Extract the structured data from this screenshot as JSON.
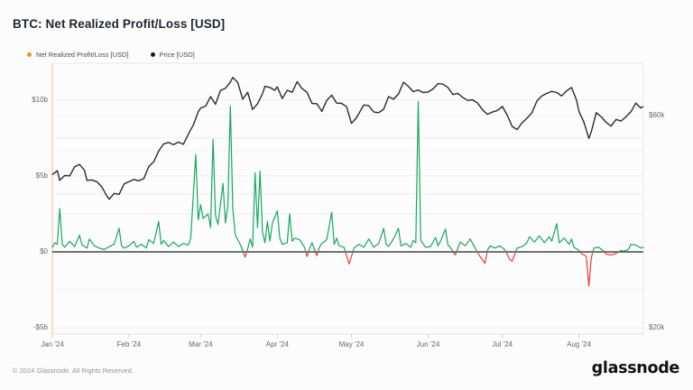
{
  "header": {
    "title": "BTC: Net Realized Profit/Loss [USD]"
  },
  "legend": [
    {
      "label": "Net Realized Profit/Loss [USD]",
      "color": "#f7931a"
    },
    {
      "label": "Price [USD]",
      "color": "#17191d"
    }
  ],
  "footer": {
    "copyright": "© 2024 Glassnode. All Rights Reserved.",
    "logo_text": "glassnode"
  },
  "chart_data": {
    "type": "line",
    "title": "BTC: Net Realized Profit/Loss [USD]",
    "grid": "on",
    "legend_position": "top-left",
    "x_axis": {
      "unit": "date (2024)",
      "domain_days": [
        0,
        239
      ],
      "ticks": [
        {
          "label": "Jan '24",
          "day": 0
        },
        {
          "label": "Feb '24",
          "day": 31
        },
        {
          "label": "Mar '24",
          "day": 60
        },
        {
          "label": "Apr '24",
          "day": 91
        },
        {
          "label": "May '24",
          "day": 121
        },
        {
          "label": "Jun '24",
          "day": 152
        },
        {
          "label": "Jul '24",
          "day": 182
        },
        {
          "label": "Aug '24",
          "day": 213
        }
      ]
    },
    "y_left": {
      "name": "Net Realized Profit/Loss",
      "unit": "USD billions",
      "scale": "linear",
      "ticks": [
        {
          "label": "$10b",
          "value": 10
        },
        {
          "label": "$5b",
          "value": 5
        },
        {
          "label": "$0",
          "value": 0
        },
        {
          "label": "-$5b",
          "value": -5
        }
      ],
      "minor_gridlines": [
        7.5,
        2.5,
        -2.5
      ]
    },
    "y_right": {
      "name": "Price",
      "unit": "USD thousands",
      "scale": "log",
      "ticks": [
        {
          "label": "$60k",
          "value": 60
        },
        {
          "label": "$20k",
          "value": 20
        }
      ],
      "minor_gridlines": [
        50,
        40
      ]
    },
    "series": [
      {
        "name": "Net Realized Profit/Loss [USD]",
        "axis": "left",
        "pos_color": "#16a863",
        "neg_color": "#ef3b31",
        "points": [
          [
            0,
            0.3
          ],
          [
            1,
            0.6
          ],
          [
            2,
            0.5
          ],
          [
            3,
            2.85
          ],
          [
            4,
            0.5
          ],
          [
            5,
            0.3
          ],
          [
            7,
            0.7
          ],
          [
            9,
            0.35
          ],
          [
            11,
            1.1
          ],
          [
            12,
            0.45
          ],
          [
            14,
            0.25
          ],
          [
            15,
            0.85
          ],
          [
            17,
            0.4
          ],
          [
            19,
            0.25
          ],
          [
            21,
            0.15
          ],
          [
            23,
            0.35
          ],
          [
            25,
            0.5
          ],
          [
            27,
            1.55
          ],
          [
            28,
            0.4
          ],
          [
            29,
            0.25
          ],
          [
            31,
            0.4
          ],
          [
            33,
            0.7
          ],
          [
            34,
            0.3
          ],
          [
            36,
            0.5
          ],
          [
            38,
            0.25
          ],
          [
            39,
            0.8
          ],
          [
            41,
            0.55
          ],
          [
            43,
            2.0
          ],
          [
            44,
            0.5
          ],
          [
            45,
            0.75
          ],
          [
            47,
            0.35
          ],
          [
            49,
            0.65
          ],
          [
            51,
            0.35
          ],
          [
            53,
            0.55
          ],
          [
            55,
            0.45
          ],
          [
            56,
            0.9
          ],
          [
            58,
            6.4
          ],
          [
            59,
            2.1
          ],
          [
            60,
            3.1
          ],
          [
            61,
            2.2
          ],
          [
            63,
            2.5
          ],
          [
            64,
            1.6
          ],
          [
            65,
            7.4
          ],
          [
            66,
            2.4
          ],
          [
            67,
            1.8
          ],
          [
            69,
            4.5
          ],
          [
            70,
            1.9
          ],
          [
            71,
            3.0
          ],
          [
            72,
            9.6
          ],
          [
            73,
            2.8
          ],
          [
            74,
            1.1
          ],
          [
            76,
            0.5
          ],
          [
            78,
            -0.35
          ],
          [
            79,
            0.2
          ],
          [
            80,
            0.85
          ],
          [
            81,
            0.3
          ],
          [
            82,
            5.2
          ],
          [
            83,
            1.6
          ],
          [
            84,
            5.3
          ],
          [
            85,
            1.3
          ],
          [
            86,
            0.6
          ],
          [
            87,
            2.0
          ],
          [
            88,
            0.7
          ],
          [
            89,
            1.9
          ],
          [
            91,
            2.7
          ],
          [
            92,
            0.9
          ],
          [
            93,
            0.5
          ],
          [
            95,
            0.6
          ],
          [
            96,
            2.5
          ],
          [
            97,
            0.7
          ],
          [
            98,
            0.9
          ],
          [
            100,
            0.8
          ],
          [
            102,
            0.3
          ],
          [
            103,
            -0.3
          ],
          [
            104,
            0.2
          ],
          [
            105,
            0.6
          ],
          [
            107,
            -0.25
          ],
          [
            108,
            0.3
          ],
          [
            109,
            0.55
          ],
          [
            111,
            0.8
          ],
          [
            113,
            2.6
          ],
          [
            114,
            0.5
          ],
          [
            115,
            0.9
          ],
          [
            116,
            0.4
          ],
          [
            118,
            0.3
          ],
          [
            120,
            -0.8
          ],
          [
            122,
            0.25
          ],
          [
            124,
            0.5
          ],
          [
            126,
            0.3
          ],
          [
            128,
            0.85
          ],
          [
            130,
            0.3
          ],
          [
            132,
            0.55
          ],
          [
            134,
            1.55
          ],
          [
            135,
            0.5
          ],
          [
            136,
            0.35
          ],
          [
            138,
            0.85
          ],
          [
            140,
            1.55
          ],
          [
            141,
            0.4
          ],
          [
            143,
            0.55
          ],
          [
            145,
            0.3
          ],
          [
            146,
            0.75
          ],
          [
            147,
            0.6
          ],
          [
            148,
            9.9
          ],
          [
            149,
            0.75
          ],
          [
            151,
            0.3
          ],
          [
            153,
            0.35
          ],
          [
            155,
            0.95
          ],
          [
            156,
            0.4
          ],
          [
            157,
            0.7
          ],
          [
            159,
            1.5
          ],
          [
            160,
            0.45
          ],
          [
            161,
            0.3
          ],
          [
            163,
            -0.2
          ],
          [
            165,
            0.65
          ],
          [
            167,
            0.4
          ],
          [
            169,
            0.85
          ],
          [
            171,
            0.25
          ],
          [
            173,
            -0.3
          ],
          [
            175,
            -0.75
          ],
          [
            176,
            0.1
          ],
          [
            177,
            0.4
          ],
          [
            179,
            0.25
          ],
          [
            181,
            0.4
          ],
          [
            183,
            0.15
          ],
          [
            185,
            -0.5
          ],
          [
            186,
            -0.6
          ],
          [
            188,
            0.25
          ],
          [
            190,
            0.35
          ],
          [
            192,
            0.6
          ],
          [
            193,
            1.0
          ],
          [
            195,
            0.65
          ],
          [
            197,
            1.05
          ],
          [
            199,
            0.6
          ],
          [
            201,
            1.0
          ],
          [
            202,
            0.7
          ],
          [
            204,
            1.85
          ],
          [
            205,
            0.6
          ],
          [
            207,
            0.9
          ],
          [
            209,
            0.5
          ],
          [
            210,
            0.85
          ],
          [
            211,
            0.3
          ],
          [
            213,
            0.1
          ],
          [
            214,
            -0.1
          ],
          [
            216,
            -0.3
          ],
          [
            217,
            -2.25
          ],
          [
            218,
            -0.4
          ],
          [
            219,
            0.25
          ],
          [
            221,
            0.3
          ],
          [
            223,
            0.05
          ],
          [
            224,
            -0.15
          ],
          [
            226,
            -0.2
          ],
          [
            228,
            -0.1
          ],
          [
            230,
            0.1
          ],
          [
            231,
            0.05
          ],
          [
            233,
            0.15
          ],
          [
            234,
            0.5
          ],
          [
            236,
            0.45
          ],
          [
            238,
            0.25
          ],
          [
            239,
            0.3
          ]
        ]
      },
      {
        "name": "Price [USD]",
        "axis": "right",
        "color": "#292c31",
        "points": [
          [
            0,
            44.2
          ],
          [
            2,
            45.1
          ],
          [
            3,
            42.9
          ],
          [
            5,
            44.0
          ],
          [
            7,
            43.9
          ],
          [
            9,
            46.0
          ],
          [
            11,
            46.6
          ],
          [
            13,
            45.2
          ],
          [
            14,
            42.9
          ],
          [
            16,
            43.0
          ],
          [
            18,
            42.6
          ],
          [
            20,
            41.5
          ],
          [
            22,
            39.6
          ],
          [
            23,
            38.9
          ],
          [
            25,
            40.1
          ],
          [
            27,
            39.9
          ],
          [
            29,
            42.1
          ],
          [
            31,
            42.6
          ],
          [
            33,
            43.1
          ],
          [
            35,
            42.8
          ],
          [
            37,
            43.3
          ],
          [
            39,
            46.1
          ],
          [
            41,
            47.2
          ],
          [
            43,
            49.9
          ],
          [
            45,
            51.8
          ],
          [
            47,
            52.2
          ],
          [
            49,
            51.6
          ],
          [
            51,
            52.3
          ],
          [
            53,
            51.7
          ],
          [
            55,
            54.5
          ],
          [
            57,
            57.1
          ],
          [
            59,
            61.2
          ],
          [
            60,
            62.4
          ],
          [
            62,
            63.0
          ],
          [
            64,
            66.2
          ],
          [
            66,
            63.6
          ],
          [
            68,
            68.3
          ],
          [
            70,
            69.1
          ],
          [
            72,
            71.4
          ],
          [
            73,
            73.1
          ],
          [
            75,
            71.2
          ],
          [
            77,
            65.3
          ],
          [
            79,
            67.7
          ],
          [
            81,
            61.9
          ],
          [
            83,
            63.8
          ],
          [
            85,
            67.2
          ],
          [
            86,
            69.8
          ],
          [
            88,
            69.4
          ],
          [
            90,
            68.4
          ],
          [
            91,
            69.6
          ],
          [
            93,
            65.5
          ],
          [
            95,
            68.4
          ],
          [
            97,
            67.7
          ],
          [
            99,
            71.5
          ],
          [
            101,
            69.0
          ],
          [
            103,
            67.7
          ],
          [
            105,
            63.9
          ],
          [
            107,
            63.8
          ],
          [
            109,
            61.3
          ],
          [
            111,
            64.9
          ],
          [
            113,
            66.7
          ],
          [
            115,
            64.0
          ],
          [
            117,
            63.9
          ],
          [
            119,
            62.8
          ],
          [
            121,
            57.6
          ],
          [
            123,
            59.3
          ],
          [
            126,
            63.4
          ],
          [
            128,
            63.1
          ],
          [
            130,
            61.1
          ],
          [
            132,
            60.9
          ],
          [
            134,
            62.0
          ],
          [
            136,
            66.2
          ],
          [
            138,
            65.3
          ],
          [
            140,
            67.1
          ],
          [
            142,
            71.3
          ],
          [
            144,
            69.8
          ],
          [
            146,
            67.9
          ],
          [
            148,
            68.5
          ],
          [
            150,
            67.6
          ],
          [
            152,
            67.8
          ],
          [
            154,
            68.9
          ],
          [
            156,
            70.8
          ],
          [
            158,
            70.6
          ],
          [
            160,
            69.4
          ],
          [
            162,
            66.9
          ],
          [
            164,
            67.3
          ],
          [
            166,
            65.9
          ],
          [
            168,
            64.9
          ],
          [
            170,
            65.1
          ],
          [
            172,
            64.0
          ],
          [
            174,
            61.8
          ],
          [
            176,
            60.4
          ],
          [
            178,
            61.1
          ],
          [
            180,
            61.6
          ],
          [
            182,
            62.9
          ],
          [
            184,
            60.1
          ],
          [
            186,
            56.7
          ],
          [
            188,
            55.8
          ],
          [
            190,
            57.8
          ],
          [
            192,
            59.2
          ],
          [
            194,
            60.9
          ],
          [
            196,
            64.7
          ],
          [
            198,
            66.4
          ],
          [
            200,
            67.3
          ],
          [
            202,
            68.0
          ],
          [
            204,
            67.6
          ],
          [
            206,
            66.4
          ],
          [
            208,
            68.2
          ],
          [
            210,
            69.4
          ],
          [
            212,
            65.0
          ],
          [
            213,
            61.3
          ],
          [
            215,
            58.0
          ],
          [
            217,
            53.3
          ],
          [
            218,
            55.2
          ],
          [
            220,
            60.9
          ],
          [
            222,
            59.6
          ],
          [
            224,
            57.9
          ],
          [
            226,
            56.8
          ],
          [
            228,
            58.8
          ],
          [
            230,
            58.3
          ],
          [
            232,
            59.6
          ],
          [
            234,
            61.2
          ],
          [
            236,
            64.0
          ],
          [
            238,
            62.4
          ],
          [
            239,
            62.9
          ]
        ]
      }
    ]
  }
}
